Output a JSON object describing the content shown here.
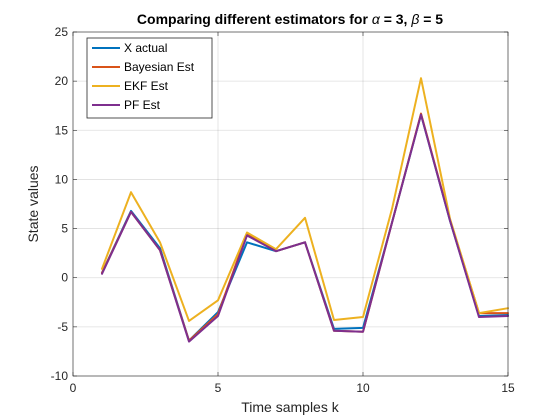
{
  "chart_data": {
    "type": "line",
    "title": {
      "prefix": "Comparing different estimators for ",
      "alpha_symbol": "α",
      "alpha_text": " = 3, ",
      "beta_symbol": "β",
      "beta_text": " = 5"
    },
    "xlabel": "Time samples k",
    "ylabel": "State values",
    "xlim": [
      0,
      15
    ],
    "ylim": [
      -10,
      25
    ],
    "xticks": [
      0,
      5,
      10,
      15
    ],
    "yticks": [
      -10,
      -5,
      0,
      5,
      10,
      15,
      20,
      25
    ],
    "grid": true,
    "legend_location": "top-left",
    "x": [
      1,
      2,
      3,
      4,
      5,
      6,
      7,
      8,
      9,
      10,
      11,
      12,
      13,
      14,
      15
    ],
    "series": [
      {
        "name": "X actual",
        "color": "#0072BD",
        "values": [
          0.5,
          6.8,
          3.0,
          -6.4,
          -3.5,
          3.6,
          2.7,
          3.6,
          -5.2,
          -5.1,
          5.6,
          16.6,
          5.8,
          -3.9,
          -3.8
        ]
      },
      {
        "name": "Bayesian Est",
        "color": "#D95319",
        "values": [
          0.5,
          6.7,
          2.8,
          -6.4,
          -3.7,
          4.5,
          2.7,
          3.6,
          -5.4,
          -5.5,
          5.6,
          16.7,
          5.9,
          -3.6,
          -3.6
        ]
      },
      {
        "name": "EKF Est",
        "color": "#EDB120",
        "values": [
          0.9,
          8.7,
          3.6,
          -4.4,
          -2.3,
          4.6,
          2.9,
          6.1,
          -4.3,
          -4.0,
          7.0,
          20.3,
          6.0,
          -3.6,
          -3.1
        ]
      },
      {
        "name": "PF Est",
        "color": "#7E2F8E",
        "values": [
          0.4,
          6.7,
          2.8,
          -6.5,
          -3.9,
          4.3,
          2.7,
          3.6,
          -5.4,
          -5.5,
          5.6,
          16.6,
          5.8,
          -4.0,
          -3.9
        ]
      }
    ]
  }
}
